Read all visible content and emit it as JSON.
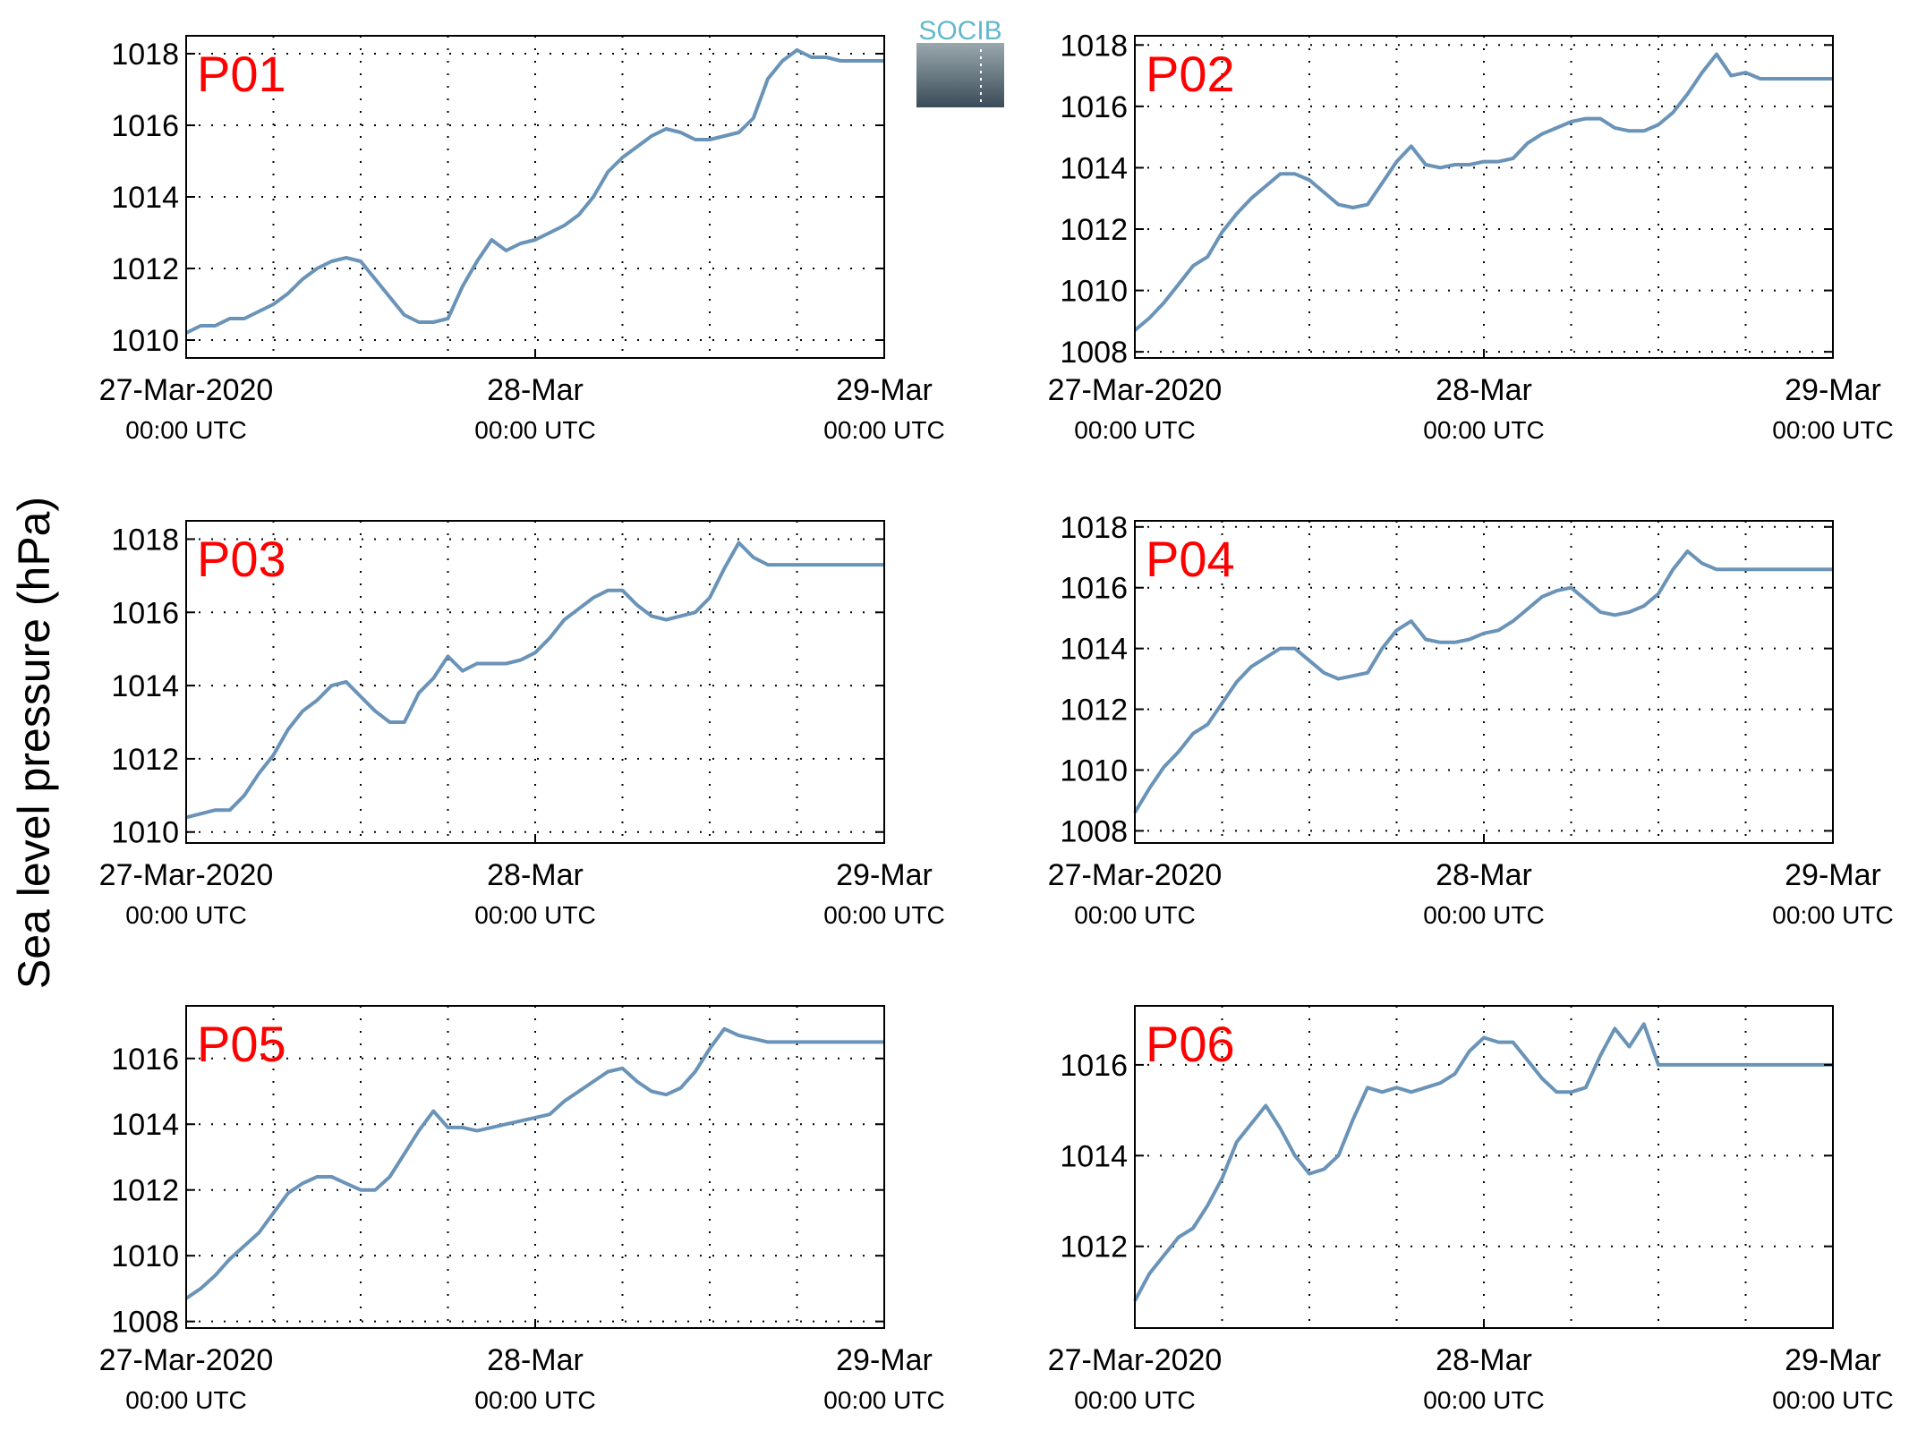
{
  "ylabel": "Sea level pressure (hPa)",
  "logo": {
    "text": "SOCIB",
    "text_color": "#63b8cc",
    "top_color": "#9aa8ae",
    "bottom_color": "#3a4c58"
  },
  "style": {
    "line_color": "#6a93b8",
    "label_color": "#ff0000"
  },
  "xticks": [
    {
      "top": "27-Mar-2020",
      "bottom": "00:00 UTC"
    },
    {
      "top": "28-Mar",
      "bottom": "00:00 UTC"
    },
    {
      "top": "29-Mar",
      "bottom": "00:00 UTC"
    }
  ],
  "chart_data": [
    {
      "type": "line",
      "label": "P01",
      "x_unit": "hours since 27-Mar-2020 00:00 UTC",
      "xlim": [
        0,
        48
      ],
      "ylim": [
        1009.5,
        1018.5
      ],
      "yticks": [
        1010,
        1012,
        1014,
        1016,
        1018
      ],
      "x": [
        0,
        1,
        2,
        3,
        4,
        5,
        6,
        7,
        8,
        9,
        10,
        11,
        12,
        13,
        14,
        15,
        16,
        17,
        18,
        19,
        20,
        21,
        22,
        23,
        24,
        25,
        26,
        27,
        28,
        29,
        30,
        31,
        32,
        33,
        34,
        35,
        36,
        37,
        38,
        39,
        40,
        41,
        42,
        43,
        44,
        45,
        46,
        47,
        48
      ],
      "values": [
        1010.2,
        1010.4,
        1010.4,
        1010.6,
        1010.6,
        1010.8,
        1011.0,
        1011.3,
        1011.7,
        1012.0,
        1012.2,
        1012.3,
        1012.2,
        1011.7,
        1011.2,
        1010.7,
        1010.5,
        1010.5,
        1010.6,
        1011.5,
        1012.2,
        1012.8,
        1012.5,
        1012.7,
        1012.8,
        1013.0,
        1013.2,
        1013.5,
        1014.0,
        1014.7,
        1015.1,
        1015.4,
        1015.7,
        1015.9,
        1015.8,
        1015.6,
        1015.6,
        1015.7,
        1015.8,
        1016.2,
        1017.3,
        1017.8,
        1018.1,
        1017.9,
        1017.9,
        1017.8,
        1017.8,
        1017.8,
        1017.8
      ]
    },
    {
      "type": "line",
      "label": "P02",
      "x_unit": "hours since 27-Mar-2020 00:00 UTC",
      "xlim": [
        0,
        48
      ],
      "ylim": [
        1007.8,
        1018.3
      ],
      "yticks": [
        1008,
        1010,
        1012,
        1014,
        1016,
        1018
      ],
      "x": [
        0,
        1,
        2,
        3,
        4,
        5,
        6,
        7,
        8,
        9,
        10,
        11,
        12,
        13,
        14,
        15,
        16,
        17,
        18,
        19,
        20,
        21,
        22,
        23,
        24,
        25,
        26,
        27,
        28,
        29,
        30,
        31,
        32,
        33,
        34,
        35,
        36,
        37,
        38,
        39,
        40,
        41,
        42,
        43,
        44,
        45,
        46,
        47,
        48
      ],
      "values": [
        1008.7,
        1009.1,
        1009.6,
        1010.2,
        1010.8,
        1011.1,
        1011.9,
        1012.5,
        1013.0,
        1013.4,
        1013.8,
        1013.8,
        1013.6,
        1013.2,
        1012.8,
        1012.7,
        1012.8,
        1013.5,
        1014.2,
        1014.7,
        1014.1,
        1014.0,
        1014.1,
        1014.1,
        1014.2,
        1014.2,
        1014.3,
        1014.8,
        1015.1,
        1015.3,
        1015.5,
        1015.6,
        1015.6,
        1015.3,
        1015.2,
        1015.2,
        1015.4,
        1015.8,
        1016.4,
        1017.1,
        1017.7,
        1017.0,
        1017.1,
        1016.9,
        1016.9,
        1016.9,
        1016.9,
        1016.9,
        1016.9
      ]
    },
    {
      "type": "line",
      "label": "P03",
      "x_unit": "hours since 27-Mar-2020 00:00 UTC",
      "xlim": [
        0,
        48
      ],
      "ylim": [
        1009.7,
        1018.5
      ],
      "yticks": [
        1010,
        1012,
        1014,
        1016,
        1018
      ],
      "x": [
        0,
        1,
        2,
        3,
        4,
        5,
        6,
        7,
        8,
        9,
        10,
        11,
        12,
        13,
        14,
        15,
        16,
        17,
        18,
        19,
        20,
        21,
        22,
        23,
        24,
        25,
        26,
        27,
        28,
        29,
        30,
        31,
        32,
        33,
        34,
        35,
        36,
        37,
        38,
        39,
        40,
        41,
        42,
        43,
        44,
        45,
        46,
        47,
        48
      ],
      "values": [
        1010.4,
        1010.5,
        1010.6,
        1010.6,
        1011.0,
        1011.6,
        1012.1,
        1012.8,
        1013.3,
        1013.6,
        1014.0,
        1014.1,
        1013.7,
        1013.3,
        1013.0,
        1013.0,
        1013.8,
        1014.2,
        1014.8,
        1014.4,
        1014.6,
        1014.6,
        1014.6,
        1014.7,
        1014.9,
        1015.3,
        1015.8,
        1016.1,
        1016.4,
        1016.6,
        1016.6,
        1016.2,
        1015.9,
        1015.8,
        1015.9,
        1016.0,
        1016.4,
        1017.2,
        1017.9,
        1017.5,
        1017.3,
        1017.3,
        1017.3,
        1017.3,
        1017.3,
        1017.3,
        1017.3,
        1017.3,
        1017.3
      ]
    },
    {
      "type": "line",
      "label": "P04",
      "x_unit": "hours since 27-Mar-2020 00:00 UTC",
      "xlim": [
        0,
        48
      ],
      "ylim": [
        1007.6,
        1018.2
      ],
      "yticks": [
        1008,
        1010,
        1012,
        1014,
        1016,
        1018
      ],
      "x": [
        0,
        1,
        2,
        3,
        4,
        5,
        6,
        7,
        8,
        9,
        10,
        11,
        12,
        13,
        14,
        15,
        16,
        17,
        18,
        19,
        20,
        21,
        22,
        23,
        24,
        25,
        26,
        27,
        28,
        29,
        30,
        31,
        32,
        33,
        34,
        35,
        36,
        37,
        38,
        39,
        40,
        41,
        42,
        43,
        44,
        45,
        46,
        47,
        48
      ],
      "values": [
        1008.6,
        1009.4,
        1010.1,
        1010.6,
        1011.2,
        1011.5,
        1012.2,
        1012.9,
        1013.4,
        1013.7,
        1014.0,
        1014.0,
        1013.6,
        1013.2,
        1013.0,
        1013.1,
        1013.2,
        1014.0,
        1014.6,
        1014.9,
        1014.3,
        1014.2,
        1014.2,
        1014.3,
        1014.5,
        1014.6,
        1014.9,
        1015.3,
        1015.7,
        1015.9,
        1016.0,
        1015.6,
        1015.2,
        1015.1,
        1015.2,
        1015.4,
        1015.8,
        1016.6,
        1017.2,
        1016.8,
        1016.6,
        1016.6,
        1016.6,
        1016.6,
        1016.6,
        1016.6,
        1016.6,
        1016.6,
        1016.6
      ]
    },
    {
      "type": "line",
      "label": "P05",
      "x_unit": "hours since 27-Mar-2020 00:00 UTC",
      "xlim": [
        0,
        48
      ],
      "ylim": [
        1007.8,
        1017.6
      ],
      "yticks": [
        1008,
        1010,
        1012,
        1014,
        1016
      ],
      "x": [
        0,
        1,
        2,
        3,
        4,
        5,
        6,
        7,
        8,
        9,
        10,
        11,
        12,
        13,
        14,
        15,
        16,
        17,
        18,
        19,
        20,
        21,
        22,
        23,
        24,
        25,
        26,
        27,
        28,
        29,
        30,
        31,
        32,
        33,
        34,
        35,
        36,
        37,
        38,
        39,
        40,
        41,
        42,
        43,
        44,
        45,
        46,
        47,
        48
      ],
      "values": [
        1008.7,
        1009.0,
        1009.4,
        1009.9,
        1010.3,
        1010.7,
        1011.3,
        1011.9,
        1012.2,
        1012.4,
        1012.4,
        1012.2,
        1012.0,
        1012.0,
        1012.4,
        1013.1,
        1013.8,
        1014.4,
        1013.9,
        1013.9,
        1013.8,
        1013.9,
        1014.0,
        1014.1,
        1014.2,
        1014.3,
        1014.7,
        1015.0,
        1015.3,
        1015.6,
        1015.7,
        1015.3,
        1015.0,
        1014.9,
        1015.1,
        1015.6,
        1016.3,
        1016.9,
        1016.7,
        1016.6,
        1016.5,
        1016.5,
        1016.5,
        1016.5,
        1016.5,
        1016.5,
        1016.5,
        1016.5,
        1016.5
      ]
    },
    {
      "type": "line",
      "label": "P06",
      "x_unit": "hours since 27-Mar-2020 00:00 UTC",
      "xlim": [
        0,
        48
      ],
      "ylim": [
        1010.2,
        1017.3
      ],
      "yticks": [
        1012,
        1014,
        1016
      ],
      "x": [
        0,
        1,
        2,
        3,
        4,
        5,
        6,
        7,
        8,
        9,
        10,
        11,
        12,
        13,
        14,
        15,
        16,
        17,
        18,
        19,
        20,
        21,
        22,
        23,
        24,
        25,
        26,
        27,
        28,
        29,
        30,
        31,
        32,
        33,
        34,
        35,
        36,
        37,
        38,
        39,
        40,
        41,
        42,
        43,
        44,
        45,
        46,
        47,
        48
      ],
      "values": [
        1010.8,
        1011.4,
        1011.8,
        1012.2,
        1012.4,
        1012.9,
        1013.5,
        1014.3,
        1014.7,
        1015.1,
        1014.6,
        1014.0,
        1013.6,
        1013.7,
        1014.0,
        1014.8,
        1015.5,
        1015.4,
        1015.5,
        1015.4,
        1015.5,
        1015.6,
        1015.8,
        1016.3,
        1016.6,
        1016.5,
        1016.5,
        1016.1,
        1015.7,
        1015.4,
        1015.4,
        1015.5,
        1016.2,
        1016.8,
        1016.4,
        1016.9,
        1016.0,
        1016.0,
        1016.0,
        1016.0,
        1016.0,
        1016.0,
        1016.0,
        1016.0,
        1016.0,
        1016.0,
        1016.0,
        1016.0,
        1016.0
      ]
    }
  ]
}
